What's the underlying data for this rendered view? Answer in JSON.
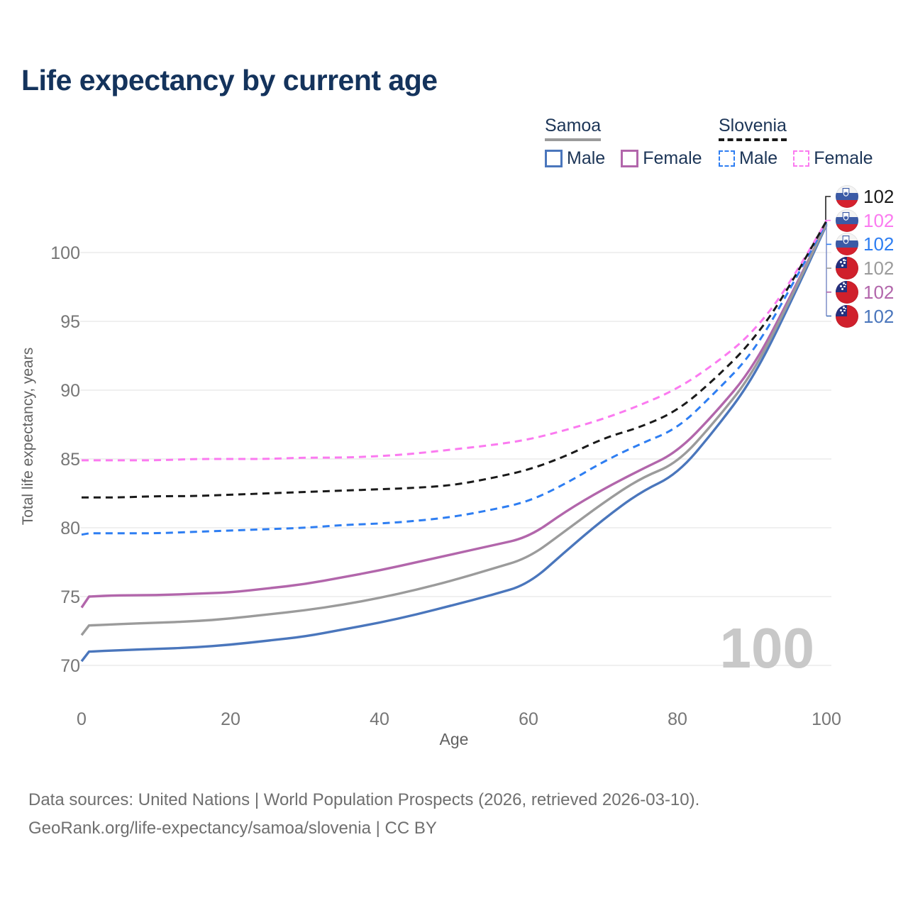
{
  "page": {
    "title": "Life expectancy by current age",
    "background": "#ffffff"
  },
  "legend": {
    "groups": [
      {
        "name": "Samoa",
        "line_style": "solid",
        "underline_color": "#9b9b9b",
        "items": [
          {
            "label": "Male",
            "color": "#4a76bc",
            "dashed": false
          },
          {
            "label": "Female",
            "color": "#b266ab",
            "dashed": false
          }
        ]
      },
      {
        "name": "Slovenia",
        "line_style": "dashed",
        "underline_color": "#1a1a1a",
        "items": [
          {
            "label": "Male",
            "color": "#2e7ef2",
            "dashed": true
          },
          {
            "label": "Female",
            "color": "#fb7af0",
            "dashed": true
          }
        ]
      }
    ]
  },
  "chart_data": {
    "type": "line",
    "title": "Life expectancy by current age",
    "xlabel": "Age",
    "ylabel": "Total life expectancy, years",
    "xlim": [
      0,
      100
    ],
    "ylim": [
      68,
      104
    ],
    "x_ticks": [
      0,
      20,
      40,
      60,
      80,
      100
    ],
    "y_ticks": [
      70,
      75,
      80,
      85,
      90,
      95,
      100
    ],
    "grid": "horizontal",
    "legend_position": "top-right",
    "watermark": "100",
    "ages": [
      0,
      1,
      5,
      10,
      15,
      20,
      25,
      30,
      35,
      40,
      45,
      50,
      55,
      60,
      65,
      70,
      75,
      80,
      85,
      90,
      95,
      100
    ],
    "series": [
      {
        "name": "Slovenia Total",
        "country": "Slovenia",
        "sex": "total",
        "style": "dashed",
        "color": "#1a1a1a",
        "values": [
          82.2,
          82.2,
          82.2,
          82.3,
          82.3,
          82.4,
          82.5,
          82.6,
          82.7,
          82.8,
          82.9,
          83.1,
          83.6,
          84.2,
          85.2,
          86.5,
          87.3,
          88.5,
          90.8,
          93.5,
          97.4,
          102.3
        ]
      },
      {
        "name": "Slovenia Female",
        "country": "Slovenia",
        "sex": "female",
        "style": "dashed",
        "color": "#fb7af0",
        "values": [
          84.9,
          84.9,
          84.9,
          84.9,
          85.0,
          85.0,
          85.0,
          85.1,
          85.1,
          85.2,
          85.4,
          85.7,
          86.0,
          86.4,
          87.1,
          87.9,
          88.9,
          90.1,
          91.9,
          94.1,
          97.6,
          102.3
        ]
      },
      {
        "name": "Slovenia Male",
        "country": "Slovenia",
        "sex": "male",
        "style": "dashed",
        "color": "#2e7ef2",
        "values": [
          79.5,
          79.6,
          79.6,
          79.6,
          79.7,
          79.8,
          79.9,
          80.0,
          80.2,
          80.3,
          80.5,
          80.8,
          81.3,
          81.9,
          83.2,
          84.8,
          86.1,
          87.2,
          89.8,
          92.6,
          97.2,
          102.2
        ]
      },
      {
        "name": "Samoa Total",
        "country": "Samoa",
        "sex": "total",
        "style": "solid",
        "color": "#9b9b9b",
        "values": [
          72.2,
          72.9,
          73.0,
          73.1,
          73.2,
          73.4,
          73.7,
          74.0,
          74.4,
          74.9,
          75.5,
          76.2,
          77.0,
          77.8,
          79.8,
          81.8,
          83.6,
          84.7,
          87.7,
          91.1,
          96.4,
          102.1
        ]
      },
      {
        "name": "Samoa Female",
        "country": "Samoa",
        "sex": "female",
        "style": "solid",
        "color": "#b266ab",
        "values": [
          74.2,
          75.0,
          75.1,
          75.1,
          75.2,
          75.3,
          75.6,
          75.9,
          76.4,
          76.9,
          77.5,
          78.1,
          78.7,
          79.3,
          81.2,
          82.8,
          84.2,
          85.5,
          88.3,
          91.5,
          96.6,
          102.1
        ]
      },
      {
        "name": "Samoa Male",
        "country": "Samoa",
        "sex": "male",
        "style": "solid",
        "color": "#4a76bc",
        "values": [
          70.3,
          71.0,
          71.1,
          71.2,
          71.3,
          71.5,
          71.8,
          72.1,
          72.6,
          73.1,
          73.7,
          74.4,
          75.1,
          75.9,
          78.3,
          80.6,
          82.6,
          83.9,
          87.1,
          90.7,
          96.1,
          102.0
        ]
      }
    ]
  },
  "right_labels": [
    {
      "flag": "slovenia",
      "value": "102",
      "color": "#1a1a1a"
    },
    {
      "flag": "slovenia",
      "value": "102",
      "color": "#fb7af0"
    },
    {
      "flag": "slovenia",
      "value": "102",
      "color": "#2e7ef2"
    },
    {
      "flag": "samoa",
      "value": "102",
      "color": "#9b9b9b"
    },
    {
      "flag": "samoa",
      "value": "102",
      "color": "#b266ab"
    },
    {
      "flag": "samoa",
      "value": "102",
      "color": "#4a76bc"
    }
  ],
  "colors": {
    "title": "#14335c",
    "legend_text": "#1c3557",
    "grid": "#ececec",
    "tick_labels": "#767676",
    "axis_titles": "#616161",
    "watermark": "#c8c8c8",
    "footer": "#6f6f6f"
  },
  "footer": {
    "line1": "Data sources: United Nations | World Population Prospects (2026, retrieved 2026-03-10).",
    "line2": "GeoRank.org/life-expectancy/samoa/slovenia | CC BY"
  }
}
